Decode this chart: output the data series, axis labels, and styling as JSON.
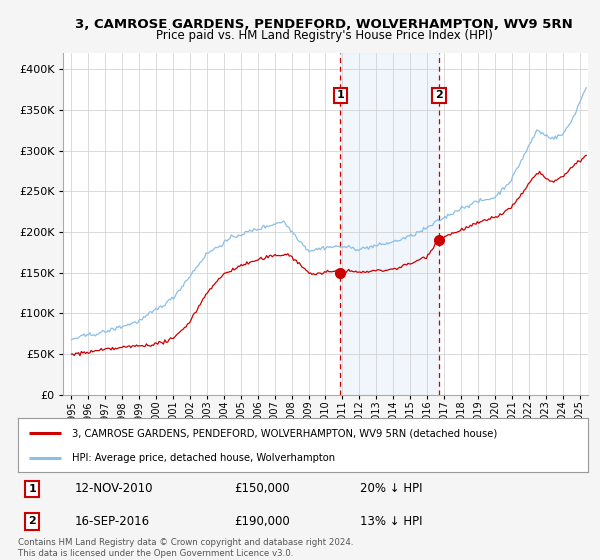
{
  "title": "3, CAMROSE GARDENS, PENDEFORD, WOLVERHAMPTON, WV9 5RN",
  "subtitle": "Price paid vs. HM Land Registry's House Price Index (HPI)",
  "legend_line1": "3, CAMROSE GARDENS, PENDEFORD, WOLVERHAMPTON, WV9 5RN (detached house)",
  "legend_line2": "HPI: Average price, detached house, Wolverhampton",
  "event1_date": "12-NOV-2010",
  "event1_price": 150000,
  "event1_hpi": "20% ↓ HPI",
  "event2_date": "16-SEP-2016",
  "event2_price": 190000,
  "event2_hpi": "13% ↓ HPI",
  "event1_x": 2010.87,
  "event2_x": 2016.71,
  "event1_y": 150000,
  "event2_y": 190000,
  "hpi_color": "#8bbfe8",
  "price_color": "#cc0000",
  "bg_color": "#f5f5f5",
  "plot_bg": "#ffffff",
  "grid_color": "#cccccc",
  "shade_color": "#d6e8f7",
  "footer": "Contains HM Land Registry data © Crown copyright and database right 2024.\nThis data is licensed under the Open Government Licence v3.0.",
  "ylim": [
    0,
    420000
  ],
  "xlim": [
    1994.5,
    2025.5
  ],
  "yticks": [
    0,
    50000,
    100000,
    150000,
    200000,
    250000,
    300000,
    350000,
    400000
  ]
}
